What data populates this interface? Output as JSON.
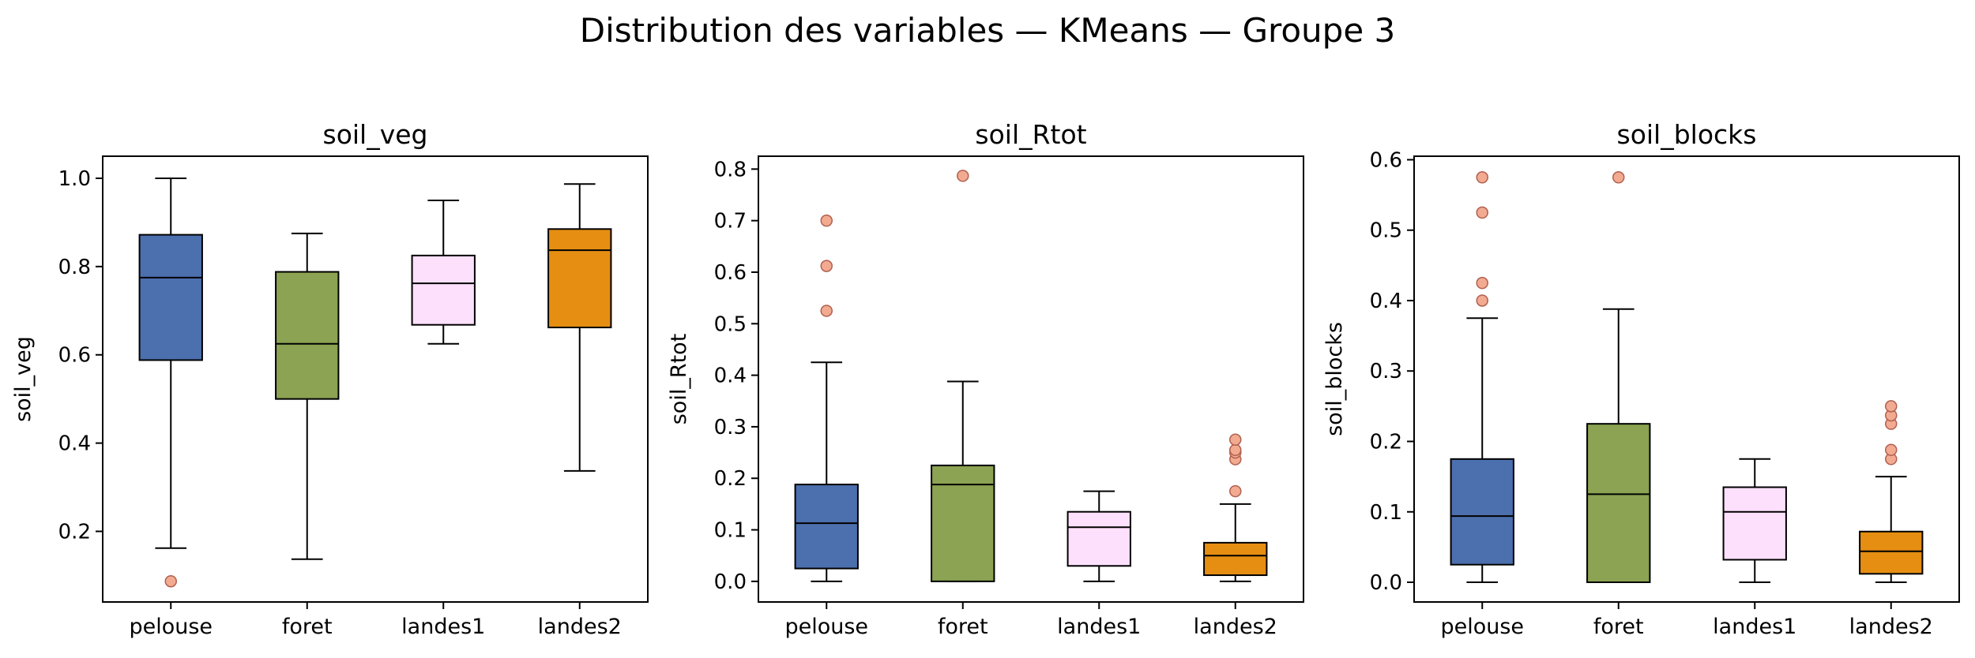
{
  "figure": {
    "title": "Distribution des variables — KMeans — Groupe 3"
  },
  "colors": {
    "pelouse": "#4c6fad",
    "foret": "#8ba352",
    "landes1": "#fde0fb",
    "landes2": "#e58e12",
    "outlier_fill": "#f2aa90",
    "outlier_edge": "#b06050"
  },
  "chart_data": [
    {
      "type": "box",
      "title": "soil_veg",
      "ylabel": "soil_veg",
      "xlabel": "",
      "categories": [
        "pelouse",
        "foret",
        "landes1",
        "landes2"
      ],
      "ylim": [
        0.04,
        1.05
      ],
      "yticks": [
        0.2,
        0.4,
        0.6,
        0.8,
        1.0
      ],
      "ytick_labels": [
        "0.2",
        "0.4",
        "0.6",
        "0.8",
        "1.0"
      ],
      "boxes": [
        {
          "whisker_low": 0.162,
          "q1": 0.588,
          "median": 0.775,
          "q3": 0.872,
          "whisker_high": 1.0,
          "outliers": [
            0.087
          ]
        },
        {
          "whisker_low": 0.137,
          "q1": 0.5,
          "median": 0.625,
          "q3": 0.788,
          "whisker_high": 0.875,
          "outliers": []
        },
        {
          "whisker_low": 0.625,
          "q1": 0.668,
          "median": 0.762,
          "q3": 0.825,
          "whisker_high": 0.95,
          "outliers": []
        },
        {
          "whisker_low": 0.337,
          "q1": 0.662,
          "median": 0.837,
          "q3": 0.885,
          "whisker_high": 0.987,
          "outliers": []
        }
      ],
      "grid": false
    },
    {
      "type": "box",
      "title": "soil_Rtot",
      "ylabel": "soil_Rtot",
      "xlabel": "",
      "categories": [
        "pelouse",
        "foret",
        "landes1",
        "landes2"
      ],
      "ylim": [
        -0.04,
        0.825
      ],
      "yticks": [
        0.0,
        0.1,
        0.2,
        0.3,
        0.4,
        0.5,
        0.6,
        0.7,
        0.8
      ],
      "ytick_labels": [
        "0.0",
        "0.1",
        "0.2",
        "0.3",
        "0.4",
        "0.5",
        "0.6",
        "0.7",
        "0.8"
      ],
      "boxes": [
        {
          "whisker_low": 0.0,
          "q1": 0.025,
          "median": 0.113,
          "q3": 0.188,
          "whisker_high": 0.425,
          "outliers": [
            0.525,
            0.612,
            0.7
          ]
        },
        {
          "whisker_low": 0.0,
          "q1": 0.0,
          "median": 0.188,
          "q3": 0.225,
          "whisker_high": 0.388,
          "outliers": [
            0.787
          ]
        },
        {
          "whisker_low": 0.0,
          "q1": 0.03,
          "median": 0.105,
          "q3": 0.135,
          "whisker_high": 0.175,
          "outliers": []
        },
        {
          "whisker_low": 0.0,
          "q1": 0.012,
          "median": 0.05,
          "q3": 0.075,
          "whisker_high": 0.15,
          "outliers": [
            0.175,
            0.237,
            0.25,
            0.255,
            0.275
          ]
        }
      ],
      "grid": false
    },
    {
      "type": "box",
      "title": "soil_blocks",
      "ylabel": "soil_blocks",
      "xlabel": "",
      "categories": [
        "pelouse",
        "foret",
        "landes1",
        "landes2"
      ],
      "ylim": [
        -0.028,
        0.605
      ],
      "yticks": [
        0.0,
        0.1,
        0.2,
        0.3,
        0.4,
        0.5,
        0.6
      ],
      "ytick_labels": [
        "0.0",
        "0.1",
        "0.2",
        "0.3",
        "0.4",
        "0.5",
        "0.6"
      ],
      "boxes": [
        {
          "whisker_low": 0.0,
          "q1": 0.025,
          "median": 0.094,
          "q3": 0.175,
          "whisker_high": 0.375,
          "outliers": [
            0.4,
            0.425,
            0.525,
            0.575
          ]
        },
        {
          "whisker_low": 0.0,
          "q1": 0.0,
          "median": 0.125,
          "q3": 0.225,
          "whisker_high": 0.388,
          "outliers": [
            0.575
          ]
        },
        {
          "whisker_low": 0.0,
          "q1": 0.032,
          "median": 0.1,
          "q3": 0.135,
          "whisker_high": 0.175,
          "outliers": []
        },
        {
          "whisker_low": 0.0,
          "q1": 0.012,
          "median": 0.044,
          "q3": 0.072,
          "whisker_high": 0.15,
          "outliers": [
            0.175,
            0.188,
            0.225,
            0.237,
            0.25
          ]
        }
      ],
      "grid": false
    }
  ]
}
